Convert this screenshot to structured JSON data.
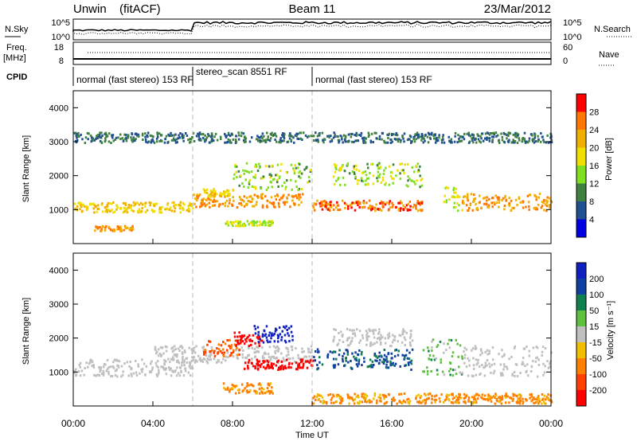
{
  "header": {
    "radar": "Unwin",
    "mode": "(fitACF)",
    "beam": "Beam 11",
    "date": "23/Mar/2012"
  },
  "noise_panel": {
    "left_label": "N.Sky",
    "right_label": "N.Search",
    "left_ticks": [
      "10^5",
      "10^0"
    ],
    "right_ticks": [
      "10^5",
      "10^0"
    ]
  },
  "freq_panel": {
    "left_label_line1": "Freq.",
    "left_label_line2": "[MHz]",
    "left_ticks": [
      "18",
      "8"
    ],
    "right_ticks": [
      "60",
      "0"
    ],
    "right_label": "Nave"
  },
  "cpid_panel": {
    "label": "CPID",
    "segments": [
      {
        "text": "normal (fast stereo) 153 RF",
        "start_hour": 0,
        "end_hour": 6
      },
      {
        "text": "stereo_scan 8551 RF",
        "start_hour": 6,
        "end_hour": 12
      },
      {
        "text": "normal (fast stereo) 153 RF",
        "start_hour": 12,
        "end_hour": 24
      }
    ]
  },
  "x_axis": {
    "label": "Time UT",
    "ticks": [
      "00:00",
      "04:00",
      "08:00",
      "12:00",
      "16:00",
      "20:00",
      "00:00"
    ]
  },
  "power_colorbar": {
    "label": "Power [dB]",
    "ticks": [
      "28",
      "24",
      "20",
      "16",
      "12",
      "8",
      "4"
    ],
    "colors": [
      "#ff0000",
      "#ff7700",
      "#f0b000",
      "#f0e000",
      "#80e020",
      "#408040",
      "#205090",
      "#0000e0"
    ]
  },
  "velocity_colorbar": {
    "label": "Velocity [m s⁻¹]",
    "ticks": [
      "200",
      "100",
      "50",
      "15",
      "-15",
      "-50",
      "-100",
      "-200"
    ],
    "colors": [
      "#1020c0",
      "#1040a0",
      "#108050",
      "#60c040",
      "#c0c0c0",
      "#f0c000",
      "#ff8000",
      "#ff4000",
      "#ff0000"
    ]
  },
  "chart_data": [
    {
      "type": "heatmap",
      "panel": "power",
      "ylabel": "Slant Range [km]",
      "yticks": [
        "1000",
        "2000",
        "3000",
        "4000"
      ],
      "ylim": [
        0,
        4500
      ],
      "xlim_hours": [
        0,
        24
      ],
      "units": "dB",
      "bands": [
        {
          "x": [
            0,
            6
          ],
          "range_km": [
            950,
            1250
          ],
          "power_db": 18
        },
        {
          "x": [
            1,
            3
          ],
          "range_km": [
            400,
            550
          ],
          "power_db": 22
        },
        {
          "x": [
            6,
            11.5
          ],
          "range_km": [
            1100,
            1500
          ],
          "power_db": 22
        },
        {
          "x": [
            6.5,
            8
          ],
          "range_km": [
            1400,
            1650
          ],
          "power_db": 18
        },
        {
          "x": [
            8,
            12
          ],
          "range_km": [
            1600,
            2400
          ],
          "power_db": 12
        },
        {
          "x": [
            12,
            17.5
          ],
          "range_km": [
            1000,
            1300
          ],
          "power_db": 24
        },
        {
          "x": [
            13,
            17.5
          ],
          "range_km": [
            1700,
            2400
          ],
          "power_db": 12
        },
        {
          "x": [
            18.5,
            19.5
          ],
          "range_km": [
            900,
            1700
          ],
          "power_db": 14
        },
        {
          "x": [
            19.5,
            24
          ],
          "range_km": [
            1000,
            1500
          ],
          "power_db": 22
        },
        {
          "x": [
            7.5,
            10
          ],
          "range_km": [
            550,
            700
          ],
          "power_db": 14
        },
        {
          "x": [
            0,
            24
          ],
          "range_km": [
            3000,
            3300
          ],
          "power_db": 6
        }
      ]
    },
    {
      "type": "heatmap",
      "panel": "velocity",
      "ylabel": "Slant Range [km]",
      "yticks": [
        "1000",
        "2000",
        "3000",
        "4000"
      ],
      "ylim": [
        0,
        4500
      ],
      "xlim_hours": [
        0,
        24
      ],
      "units": "m s^-1",
      "bands": [
        {
          "x": [
            0,
            6
          ],
          "range_km": [
            900,
            1400
          ],
          "velocity": 0
        },
        {
          "x": [
            4,
            12
          ],
          "range_km": [
            1300,
            1800
          ],
          "velocity": 0
        },
        {
          "x": [
            6.5,
            8.5
          ],
          "range_km": [
            1500,
            2000
          ],
          "velocity": -80
        },
        {
          "x": [
            8,
            9.5
          ],
          "range_km": [
            1800,
            2200
          ],
          "velocity": -200
        },
        {
          "x": [
            9,
            11
          ],
          "range_km": [
            1900,
            2400
          ],
          "velocity": 200
        },
        {
          "x": [
            8.5,
            12
          ],
          "range_km": [
            1100,
            1400
          ],
          "velocity": -200
        },
        {
          "x": [
            12,
            17
          ],
          "range_km": [
            1100,
            1700
          ],
          "velocity": 80
        },
        {
          "x": [
            13,
            17
          ],
          "range_km": [
            1800,
            2300
          ],
          "velocity": 0
        },
        {
          "x": [
            17.5,
            19.5
          ],
          "range_km": [
            900,
            2000
          ],
          "velocity": 20
        },
        {
          "x": [
            19.5,
            24
          ],
          "range_km": [
            900,
            1800
          ],
          "velocity": 0
        },
        {
          "x": [
            7.5,
            10
          ],
          "range_km": [
            400,
            700
          ],
          "velocity": -40
        },
        {
          "x": [
            12,
            24
          ],
          "range_km": [
            100,
            400
          ],
          "velocity": -40
        }
      ]
    }
  ]
}
